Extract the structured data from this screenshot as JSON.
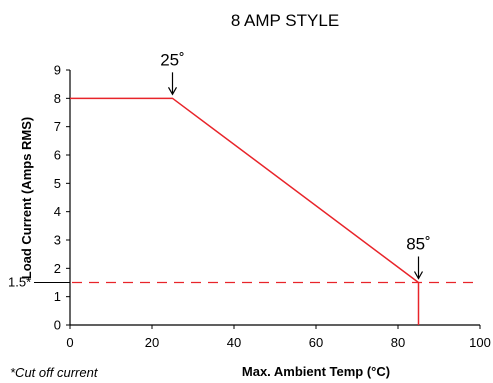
{
  "chart_data": {
    "type": "line",
    "title": "8 AMP STYLE",
    "xlabel": "Max. Ambient Temp (°C)",
    "ylabel": "Load Current (Amps RMS)",
    "xlim": [
      0,
      100
    ],
    "ylim": [
      0,
      9
    ],
    "xticks": [
      "0",
      "20",
      "40",
      "60",
      "80",
      "100"
    ],
    "yticks": [
      "0",
      "1",
      "2",
      "3",
      "4",
      "5",
      "6",
      "7",
      "8",
      "9"
    ],
    "grid": false,
    "series": [
      {
        "x": [
          0,
          25,
          85,
          85
        ],
        "y": [
          8,
          8,
          1.5,
          0
        ],
        "color": "#e8242a"
      }
    ],
    "cutoff": {
      "y": 1.5,
      "label": "1.5*",
      "color": "#e8242a"
    },
    "annotations": [
      {
        "text": "25˚",
        "x": 25,
        "y": 8
      },
      {
        "text": "85˚",
        "x": 85,
        "y": 1.5
      }
    ],
    "footnote": "*Cut off current"
  }
}
